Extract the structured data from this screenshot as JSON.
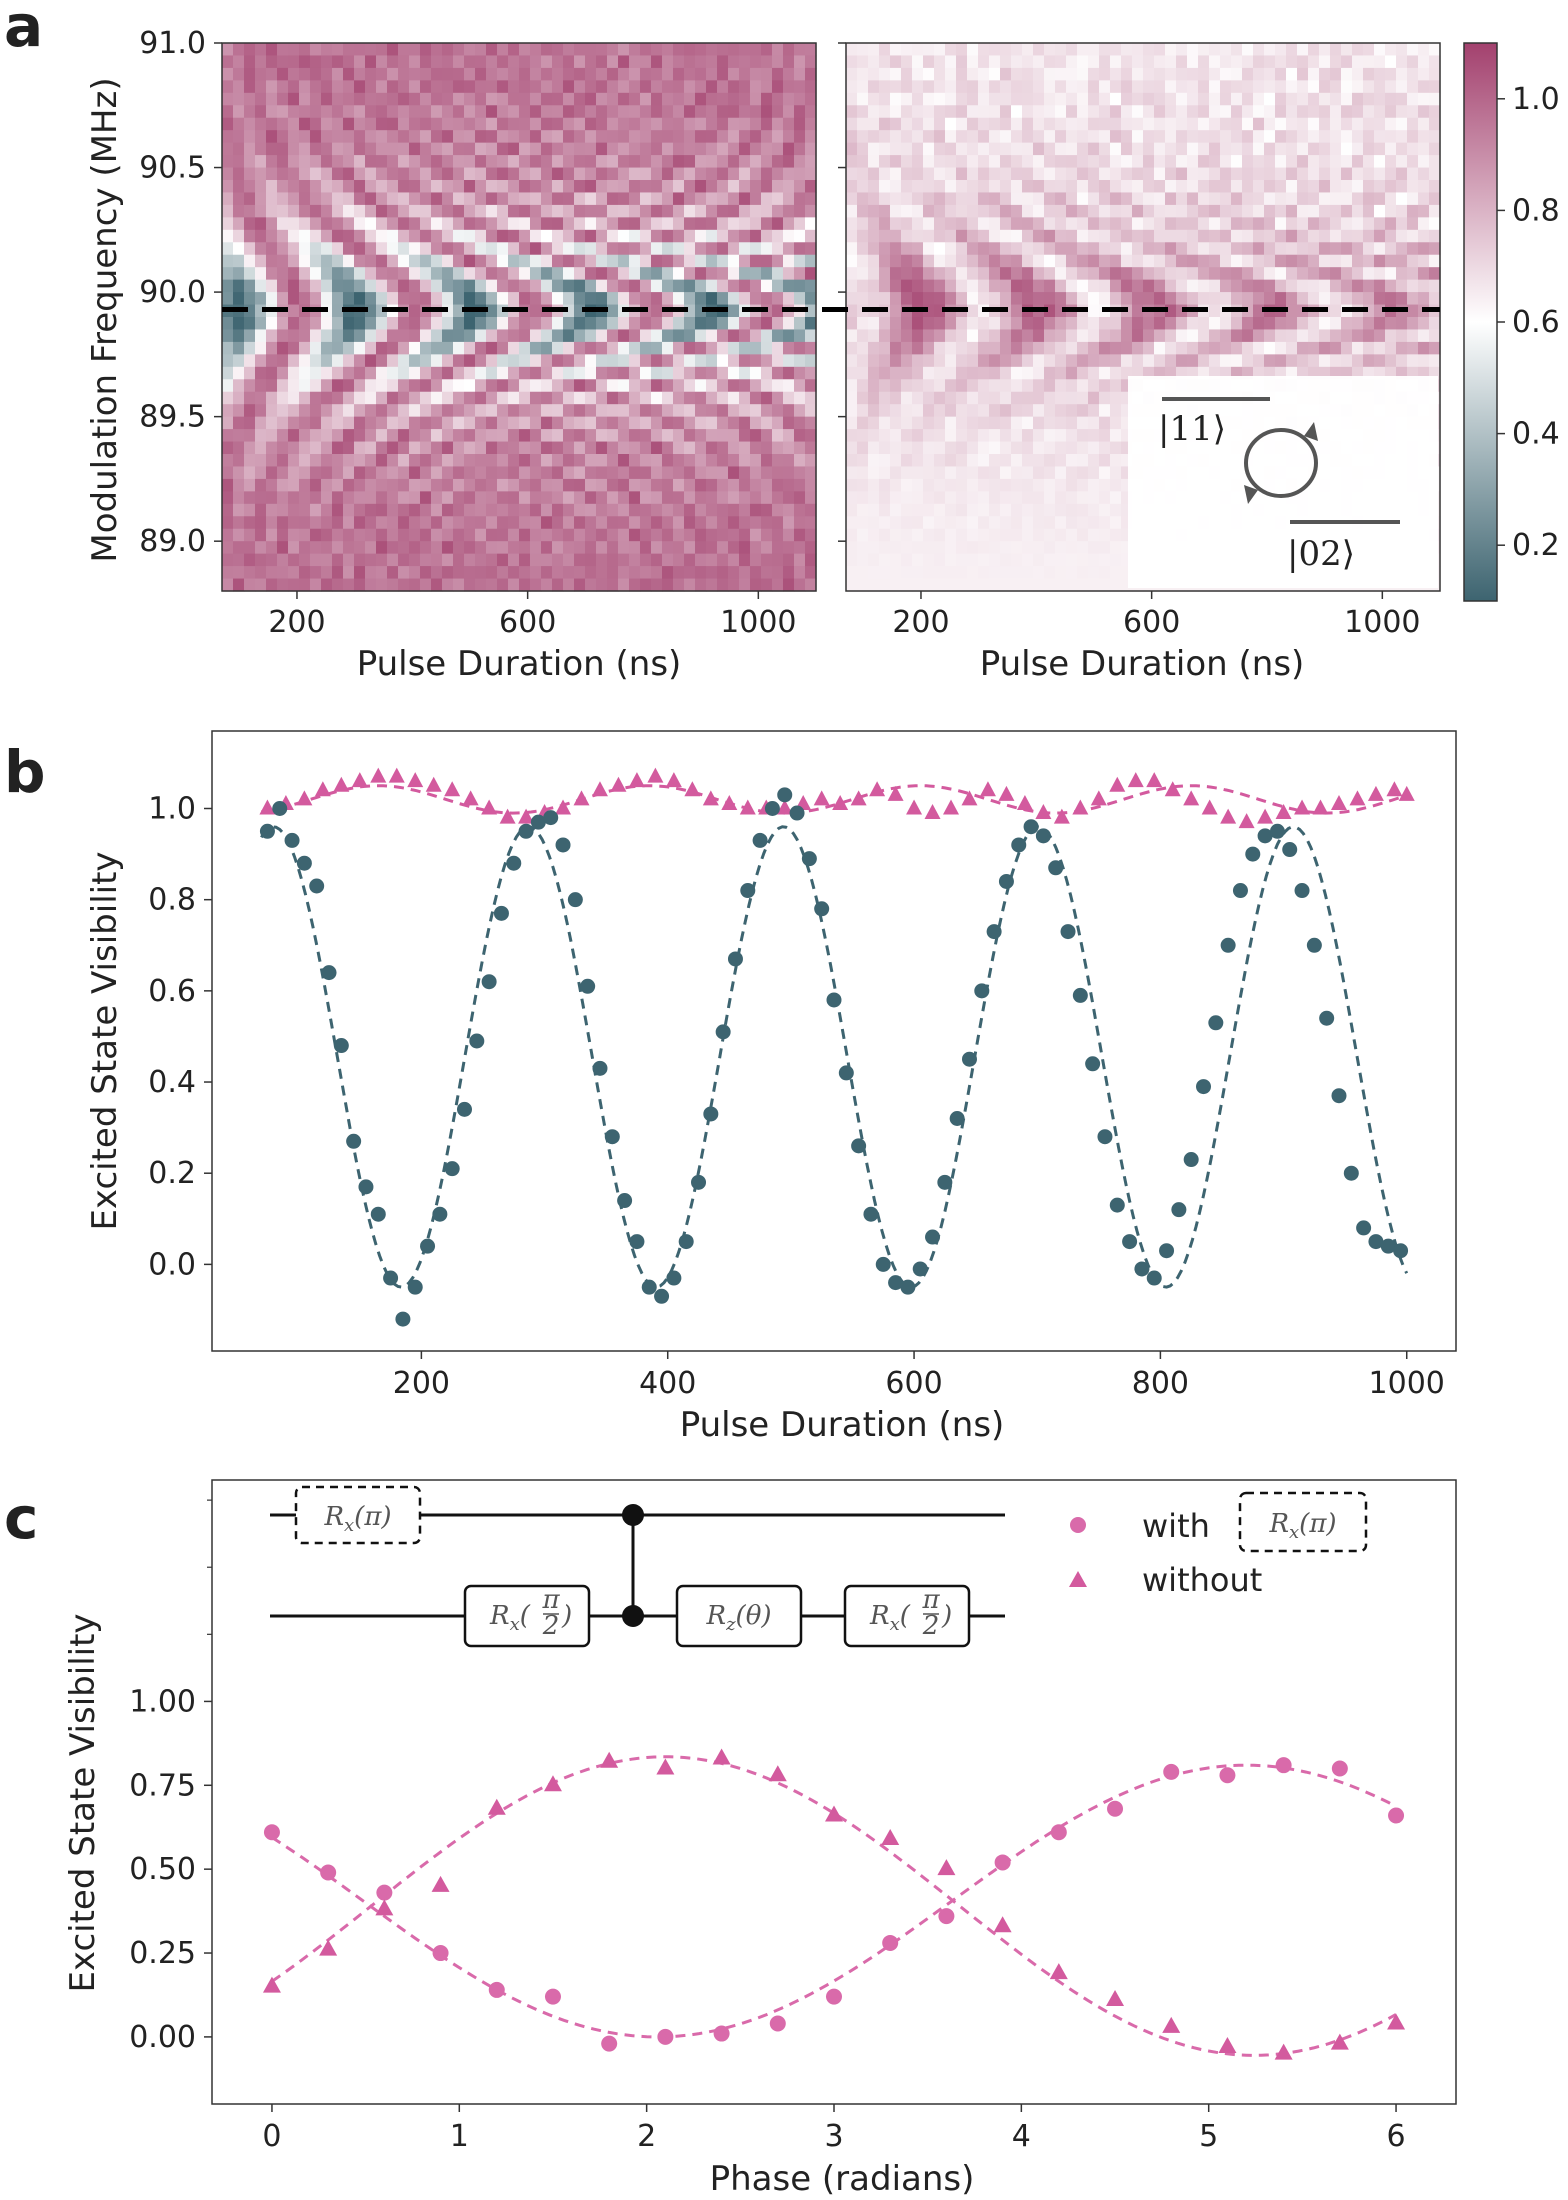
{
  "panels": {
    "a": {
      "letter": "a",
      "ylabel": "Modulation Frequency (MHz)",
      "xlabel": "Pulse Duration (ns)",
      "yticks": [
        89.0,
        89.5,
        90.0,
        90.5,
        91.0
      ],
      "yticks_text": [
        "89.0",
        "89.5",
        "90.0",
        "90.5",
        "91.0"
      ],
      "xticks": [
        200,
        600,
        1000
      ],
      "xticks_text": [
        "200",
        "600",
        "1000"
      ],
      "xlim": [
        70,
        1100
      ],
      "ylim": [
        88.8,
        91.0
      ],
      "dashed_line_y": 89.93,
      "colorbar": {
        "ticks": [
          0.2,
          0.4,
          0.6,
          0.8,
          1.0
        ],
        "ticks_text": [
          "0.2",
          "0.4",
          "0.6",
          "0.8",
          "1.0"
        ],
        "range": [
          0.1,
          1.1
        ],
        "colors": [
          "#3d6470",
          "#ffffff",
          "#a3416e"
        ]
      },
      "inset": {
        "ket_top": "|11⟩",
        "ket_bottom": "|02⟩"
      }
    },
    "b": {
      "letter": "b",
      "ylabel": "Excited State Visibility",
      "xlabel": "Pulse Duration (ns)",
      "xticks": [
        200,
        400,
        600,
        800,
        1000
      ],
      "xticks_text": [
        "200",
        "400",
        "600",
        "800",
        "1000"
      ],
      "yticks": [
        0.0,
        0.2,
        0.4,
        0.6,
        0.8,
        1.0
      ],
      "yticks_text": [
        "0.0",
        "0.2",
        "0.4",
        "0.6",
        "0.8",
        "1.0"
      ],
      "xlim": [
        30,
        1040
      ],
      "ylim": [
        -0.19,
        1.17
      ]
    },
    "c": {
      "letter": "c",
      "ylabel": "Excited State Visibility",
      "xlabel": "Phase (radians)",
      "xticks": [
        0,
        1,
        2,
        3,
        4,
        5,
        6
      ],
      "xticks_text": [
        "0",
        "1",
        "2",
        "3",
        "4",
        "5",
        "6"
      ],
      "yticks": [
        0.0,
        0.25,
        0.5,
        0.75,
        1.0
      ],
      "yticks_text": [
        "0.00",
        "0.25",
        "0.50",
        "0.75",
        "1.00"
      ],
      "xlim": [
        -0.32,
        6.32
      ],
      "ylim": [
        -0.2,
        1.66
      ],
      "legend": {
        "with": "with",
        "without": "without"
      },
      "circuit": {
        "rx_pi": "R",
        "rx_pi_sub": "x",
        "rx_pi_arg": "(π)",
        "rx_half": "R",
        "rx_half_sub": "x",
        "rx_half_num": "π",
        "rx_half_den": "2",
        "rz": "R",
        "rz_sub": "z",
        "rz_arg": "(θ)"
      }
    }
  },
  "colors": {
    "teal": "#3d6470",
    "pink": "#d96aaa",
    "pink_tri": "#d35a9e",
    "magenta": "#a3416e"
  },
  "chart_data": [
    {
      "id": "a-left",
      "type": "heatmap",
      "x_range": [
        70,
        1100
      ],
      "y_range": [
        88.8,
        91.0
      ],
      "value_range": [
        0.1,
        1.1
      ],
      "note_values": "chevron interference pattern, minimum near 89.93 MHz"
    },
    {
      "id": "a-right",
      "type": "heatmap",
      "x_range": [
        70,
        1100
      ],
      "y_range": [
        88.8,
        91.0
      ],
      "value_range": [
        0.1,
        1.1
      ]
    },
    {
      "id": "b",
      "type": "scatter",
      "series": [
        {
          "name": "teal-circles",
          "x": [
            75,
            85,
            95,
            105,
            115,
            125,
            135,
            145,
            155,
            165,
            175,
            185,
            195,
            205,
            215,
            225,
            235,
            245,
            255,
            265,
            275,
            285,
            295,
            305,
            315,
            325,
            335,
            345,
            355,
            365,
            375,
            385,
            395,
            405,
            415,
            425,
            435,
            445,
            455,
            465,
            475,
            485,
            495,
            505,
            515,
            525,
            535,
            545,
            555,
            565,
            575,
            585,
            595,
            605,
            615,
            625,
            635,
            645,
            655,
            665,
            675,
            685,
            695,
            705,
            715,
            725,
            735,
            745,
            755,
            765,
            775,
            785,
            795,
            805,
            815,
            825,
            835,
            845,
            855,
            865,
            875,
            885,
            895,
            905,
            915,
            925,
            935,
            945,
            955,
            965,
            975,
            985,
            995
          ],
          "y": [
            0.95,
            1.0,
            0.93,
            0.88,
            0.83,
            0.64,
            0.48,
            0.27,
            0.17,
            0.11,
            -0.03,
            -0.12,
            -0.05,
            0.04,
            0.11,
            0.21,
            0.34,
            0.49,
            0.62,
            0.77,
            0.88,
            0.95,
            0.97,
            0.98,
            0.92,
            0.8,
            0.61,
            0.43,
            0.28,
            0.14,
            0.05,
            -0.05,
            -0.07,
            -0.03,
            0.05,
            0.18,
            0.33,
            0.51,
            0.67,
            0.82,
            0.93,
            1.0,
            1.03,
            0.99,
            0.89,
            0.78,
            0.58,
            0.42,
            0.26,
            0.11,
            0.0,
            -0.04,
            -0.05,
            -0.01,
            0.06,
            0.18,
            0.32,
            0.45,
            0.6,
            0.73,
            0.84,
            0.92,
            0.96,
            0.94,
            0.87,
            0.73,
            0.59,
            0.44,
            0.28,
            0.13,
            0.05,
            -0.01,
            -0.03,
            0.03,
            0.12,
            0.23,
            0.39,
            0.53,
            0.7,
            0.82,
            0.9,
            0.94,
            0.95,
            0.91,
            0.82,
            0.7,
            0.54,
            0.37,
            0.2,
            0.08,
            0.05,
            0.04,
            0.03
          ]
        },
        {
          "name": "pink-triangles",
          "x": [
            75,
            90,
            105,
            120,
            135,
            150,
            165,
            180,
            195,
            210,
            225,
            240,
            255,
            270,
            285,
            300,
            315,
            330,
            345,
            360,
            375,
            390,
            405,
            420,
            435,
            450,
            465,
            480,
            495,
            510,
            525,
            540,
            555,
            570,
            585,
            600,
            615,
            630,
            645,
            660,
            675,
            690,
            705,
            720,
            735,
            750,
            765,
            780,
            795,
            810,
            825,
            840,
            855,
            870,
            885,
            900,
            915,
            930,
            945,
            960,
            975,
            990,
            1000
          ],
          "y": [
            1.0,
            1.01,
            1.02,
            1.04,
            1.05,
            1.06,
            1.07,
            1.07,
            1.06,
            1.05,
            1.04,
            1.02,
            1.0,
            0.98,
            0.98,
            0.99,
            1.0,
            1.02,
            1.04,
            1.05,
            1.06,
            1.07,
            1.06,
            1.04,
            1.02,
            1.01,
            1.0,
            1.0,
            1.0,
            1.01,
            1.02,
            1.01,
            1.02,
            1.04,
            1.03,
            1.0,
            0.99,
            1.0,
            1.02,
            1.04,
            1.03,
            1.01,
            0.99,
            0.98,
            1.0,
            1.02,
            1.05,
            1.06,
            1.06,
            1.04,
            1.02,
            1.0,
            0.98,
            0.97,
            0.98,
            0.99,
            1.0,
            1.0,
            1.01,
            1.02,
            1.03,
            1.04,
            1.03
          ]
        }
      ]
    },
    {
      "id": "c",
      "type": "scatter",
      "series": [
        {
          "name": "with",
          "marker": "circle",
          "x": [
            0,
            0.3,
            0.6,
            0.9,
            1.2,
            1.5,
            1.8,
            2.1,
            2.4,
            2.7,
            3.0,
            3.3,
            3.6,
            3.9,
            4.2,
            4.5,
            4.8,
            5.1,
            5.4,
            5.7,
            6.0
          ],
          "y": [
            0.61,
            0.49,
            0.43,
            0.25,
            0.14,
            0.12,
            -0.02,
            0.0,
            0.01,
            0.04,
            0.12,
            0.28,
            0.36,
            0.52,
            0.61,
            0.68,
            0.79,
            0.78,
            0.81,
            0.8,
            0.66
          ]
        },
        {
          "name": "without",
          "marker": "triangle",
          "x": [
            0,
            0.3,
            0.6,
            0.9,
            1.2,
            1.5,
            1.8,
            2.1,
            2.4,
            2.7,
            3.0,
            3.3,
            3.6,
            3.9,
            4.2,
            4.5,
            4.8,
            5.1,
            5.4,
            5.7,
            6.0
          ],
          "y": [
            0.15,
            0.26,
            0.38,
            0.45,
            0.68,
            0.75,
            0.82,
            0.8,
            0.83,
            0.78,
            0.66,
            0.59,
            0.5,
            0.33,
            0.19,
            0.11,
            0.03,
            -0.03,
            -0.05,
            -0.02,
            0.04
          ]
        }
      ]
    }
  ]
}
